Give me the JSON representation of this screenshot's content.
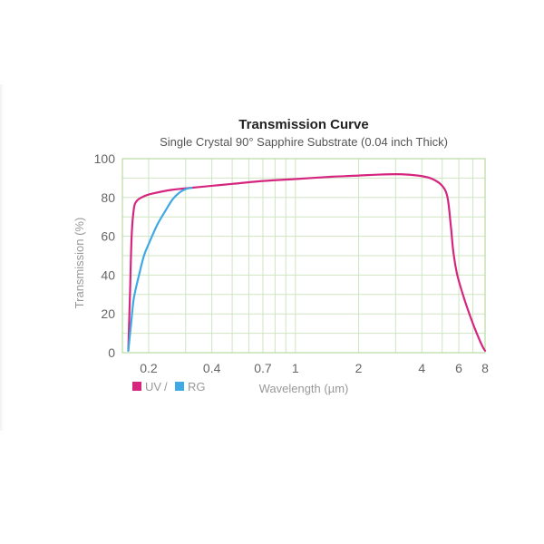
{
  "chart_data": {
    "type": "line",
    "title": "Transmission Curve",
    "subtitle": "Single Crystal 90° Sapphire Substrate (0.04 inch Thick)",
    "xlabel": "Wavelength (µm)",
    "ylabel": "Transmission (%)",
    "xscale": "log",
    "xlim": [
      0.15,
      8
    ],
    "ylim": [
      0,
      100
    ],
    "grid": true,
    "x_ticks": [
      {
        "value": 0.2,
        "label": "0.2"
      },
      {
        "value": 0.4,
        "label": "0.4"
      },
      {
        "value": 0.7,
        "label": "0.7"
      },
      {
        "value": 1,
        "label": "1"
      },
      {
        "value": 2,
        "label": "2"
      },
      {
        "value": 4,
        "label": "4"
      },
      {
        "value": 6,
        "label": "6"
      },
      {
        "value": 8,
        "label": "8"
      }
    ],
    "y_ticks": [
      {
        "value": 0,
        "label": "0"
      },
      {
        "value": 20,
        "label": "20"
      },
      {
        "value": 40,
        "label": "40"
      },
      {
        "value": 60,
        "label": "60"
      },
      {
        "value": 80,
        "label": "80"
      },
      {
        "value": 100,
        "label": "100"
      }
    ],
    "legend": {
      "placement": "bottom-left",
      "separator": "/",
      "entries": [
        {
          "label": "UV",
          "color": "#d6257f"
        },
        {
          "label": "RG",
          "color": "#3fa9e6"
        }
      ]
    },
    "series": [
      {
        "name": "UV",
        "color": "#d6257f",
        "points": [
          [
            0.16,
            1
          ],
          [
            0.163,
            30
          ],
          [
            0.166,
            60
          ],
          [
            0.17,
            74
          ],
          [
            0.175,
            78
          ],
          [
            0.185,
            80
          ],
          [
            0.2,
            81.5
          ],
          [
            0.23,
            83
          ],
          [
            0.26,
            84
          ],
          [
            0.3,
            84.7
          ],
          [
            0.4,
            86
          ],
          [
            0.5,
            87
          ],
          [
            0.7,
            88.5
          ],
          [
            1,
            89.5
          ],
          [
            1.5,
            90.7
          ],
          [
            2,
            91.3
          ],
          [
            2.5,
            91.8
          ],
          [
            3,
            92
          ],
          [
            3.5,
            91.7
          ],
          [
            4,
            91
          ],
          [
            4.5,
            89.5
          ],
          [
            5,
            86
          ],
          [
            5.3,
            80
          ],
          [
            5.5,
            65
          ],
          [
            5.65,
            52
          ],
          [
            5.9,
            40
          ],
          [
            6.4,
            27
          ],
          [
            7,
            15
          ],
          [
            7.5,
            7
          ],
          [
            7.8,
            3
          ],
          [
            8,
            1
          ]
        ]
      },
      {
        "name": "RG",
        "color": "#3fa9e6",
        "points": [
          [
            0.16,
            1
          ],
          [
            0.165,
            15
          ],
          [
            0.17,
            28
          ],
          [
            0.18,
            40
          ],
          [
            0.19,
            50
          ],
          [
            0.2,
            56
          ],
          [
            0.22,
            66
          ],
          [
            0.24,
            73
          ],
          [
            0.26,
            79
          ],
          [
            0.28,
            82.5
          ],
          [
            0.3,
            84.3
          ],
          [
            0.32,
            85
          ]
        ]
      }
    ]
  }
}
